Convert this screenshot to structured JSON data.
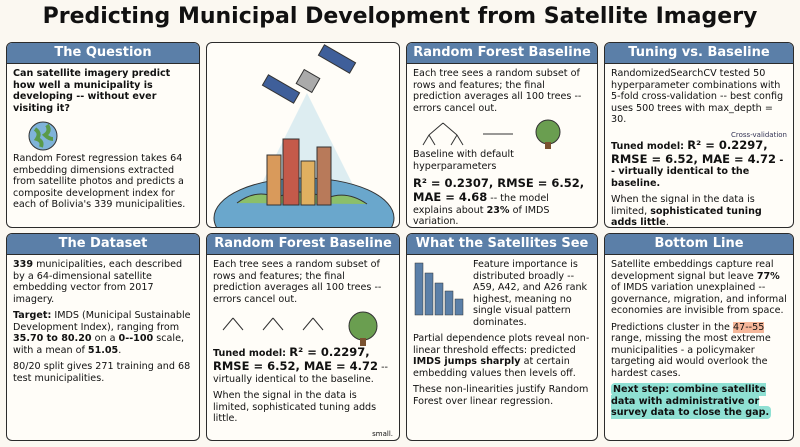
{
  "title": "Predicting Municipal Development from Satellite Imagery",
  "question": {
    "title": "The Question",
    "p0": "Can satellite imagery predict how well a municipality is developing -- without ever visiting it?",
    "p1": "Random Forest regression takes 64 embedding dimensions extracted from satellite photos and predicts a composite development index for each of Bolivia's 339 municipalities."
  },
  "dataset": {
    "title": "The Dataset",
    "p0": [
      "339",
      " municipalities, each described by a 64-dimensional satellite embedding vector from 2017 imagery."
    ],
    "p1": [
      "Target:",
      " IMDS (Municipal Sustainable Development Index), ranging from ",
      "35.70 to 80.20",
      " on a ",
      "0--100",
      " scale, with a mean of ",
      "51.05",
      "."
    ],
    "p2": "80/20 split gives 271 training and 68 test municipalities."
  },
  "rf_tuned": {
    "title": "Random Forest Baseline",
    "p0": "Each tree sees a random subset of rows and features; the final prediction averages all 100 trees -- errors cancel out.",
    "p1": [
      "Tuned model: ",
      "R² = 0.2297, RMSE = 6.52, MAE = 4.72",
      " -- virtually identical to the baseline."
    ],
    "p2": "When the signal in the data is limited, sophisticated tuning adds little.",
    "icon_label": "small."
  },
  "rf_baseline": {
    "title": "Random Forest Baseline",
    "p0": "Each tree sees a random subset of rows and features; the final prediction averages all 100 trees -- errors cancel out.",
    "p1": "Baseline with default hyperparameters",
    "p2": [
      "R² = 0.2307, RMSE = 6.52, MAE = 4.68",
      " -- the model explains about ",
      "23%",
      " of IMDS variation."
    ]
  },
  "satellites": {
    "title": "What the Satellites See",
    "p0": "Feature importance is distributed broadly -- A59, A42, and A26 rank highest, meaning no single visual pattern dominates.",
    "p1": [
      "Partial dependence plots reveal non-linear threshold effects: predicted ",
      "IMDS jumps sharply",
      " at certain embedding values then levels off."
    ],
    "p2": "These non-linearities justify Random Forest over linear regression."
  },
  "tuning": {
    "title": "Tuning vs. Baseline",
    "p0": "RandomizedSearchCV tested 50 hyperparameter combinations with 5-fold cross-validation -- best config uses 500 trees with max_depth = 30.",
    "icon_label": "Cross-validation",
    "p1": [
      "Tuned model: ",
      "R² = 0.2297, RMSE = 6.52, MAE = 4.72",
      " -- virtually identical to the baseline."
    ],
    "p2": [
      "When the signal in the data is limited, ",
      "sophisticated tuning adds little",
      "."
    ]
  },
  "bottom_line": {
    "title": "Bottom Line",
    "p0": [
      "Satellite embeddings capture real development signal but leave ",
      "77%",
      " of IMDS variation unexplained -- governance, migration, and informal economies are invisible from space."
    ],
    "p1": [
      "Predictions cluster in the ",
      "47--55",
      " range, missing the most extreme municipalities - a policymaker targeting aid would overlook the hardest cases."
    ],
    "p2": "Next step: combine satellite data with administrative or survey data to close the gap."
  }
}
